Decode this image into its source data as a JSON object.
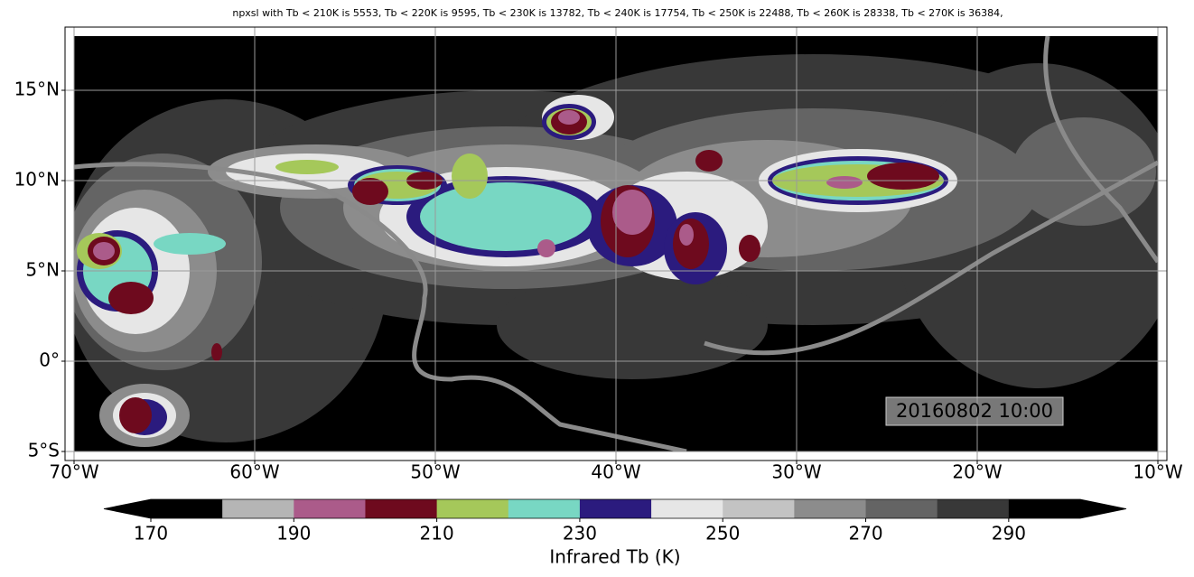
{
  "title": "npxsl with Tb < 210K is 5553,  Tb < 220K is 9595,  Tb < 230K is 13782,  Tb < 240K is 17754,  Tb < 250K is 22488,  Tb < 260K is 28338,  Tb < 270K is 36384,",
  "map": {
    "xlim": [
      -70.5,
      -9.5
    ],
    "ylim": [
      -5.5,
      18.5
    ],
    "xticks": [
      {
        "value": -70,
        "label": "70°W"
      },
      {
        "value": -60,
        "label": "60°W"
      },
      {
        "value": -50,
        "label": "50°W"
      },
      {
        "value": -40,
        "label": "40°W"
      },
      {
        "value": -30,
        "label": "30°W"
      },
      {
        "value": -20,
        "label": "20°W"
      },
      {
        "value": -10,
        "label": "10°W"
      }
    ],
    "yticks": [
      {
        "value": -5,
        "label": "5°S"
      },
      {
        "value": 0,
        "label": "0°"
      },
      {
        "value": 5,
        "label": "5°N"
      },
      {
        "value": 10,
        "label": "10°N"
      },
      {
        "value": 15,
        "label": "15°N"
      }
    ],
    "grid": true,
    "timestamp": "20160802 10:00"
  },
  "colorbar": {
    "label": "Infrared Tb (K)",
    "bounds": [
      170,
      180,
      190,
      200,
      210,
      220,
      230,
      240,
      250,
      260,
      270,
      280,
      290,
      300
    ],
    "colors": [
      "#000000",
      "#b5b5b5",
      "#ab5b8a",
      "#6e0a1e",
      "#a5c85a",
      "#78d7c3",
      "#2b1b7e",
      "#e6e6e6",
      "#c3c3c3",
      "#8c8c8c",
      "#646464",
      "#383838",
      "#000000"
    ],
    "under_color": "#000000",
    "over_color": "#000000",
    "ticks": [
      170,
      190,
      210,
      230,
      250,
      270,
      290
    ]
  }
}
